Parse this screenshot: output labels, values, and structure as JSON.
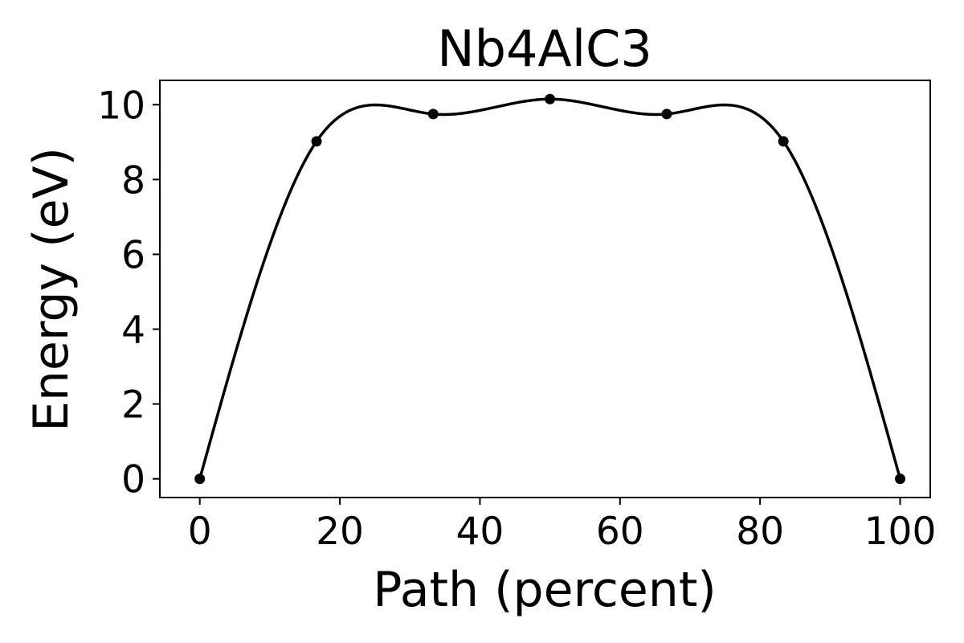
{
  "chart_data": {
    "type": "line",
    "title": "Nb4AlC3",
    "xlabel": "Path (percent)",
    "ylabel": "Energy (eV)",
    "xlim": [
      -5.7,
      104.3
    ],
    "ylim": [
      -0.5,
      10.65
    ],
    "xticks": [
      0,
      20,
      40,
      60,
      80,
      100
    ],
    "yticks": [
      0,
      2,
      4,
      6,
      8,
      10
    ],
    "grid": false,
    "series": [
      {
        "color": "#000000",
        "x": [
          0,
          16.67,
          33.33,
          50,
          66.67,
          83.33,
          100
        ],
        "y": [
          0,
          9.02,
          9.75,
          10.15,
          9.75,
          9.02,
          0
        ]
      }
    ]
  }
}
